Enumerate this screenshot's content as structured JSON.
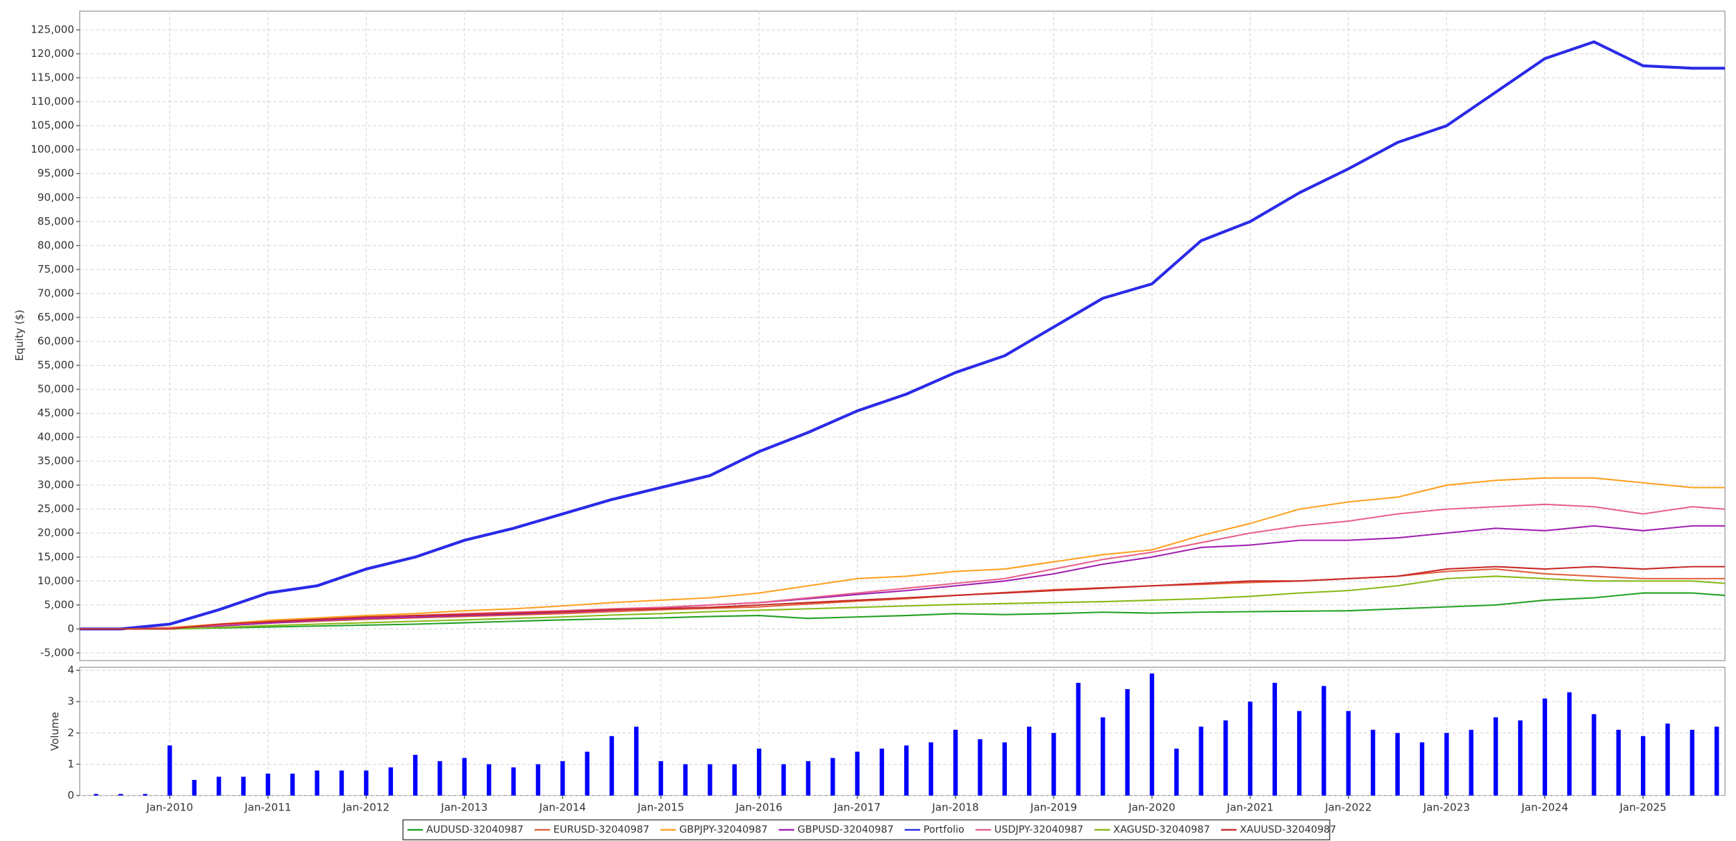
{
  "chart_data": [
    {
      "type": "line",
      "y_label": "Equity ($)",
      "x": [
        "2009-02",
        "2009-07",
        "2010-01",
        "2010-07",
        "2011-01",
        "2011-07",
        "2012-01",
        "2012-07",
        "2013-01",
        "2013-07",
        "2014-01",
        "2014-07",
        "2015-01",
        "2015-07",
        "2016-01",
        "2016-07",
        "2017-01",
        "2017-07",
        "2018-01",
        "2018-07",
        "2019-01",
        "2019-07",
        "2020-01",
        "2020-07",
        "2021-01",
        "2021-07",
        "2022-01",
        "2022-07",
        "2023-01",
        "2023-07",
        "2024-01",
        "2024-07",
        "2025-01",
        "2025-07",
        "2025-11"
      ],
      "xlim": [
        "2009-02",
        "2025-11"
      ],
      "ylim": [
        -6600,
        128900
      ],
      "yticks": [
        {
          "value": -5000,
          "label": "-5,000"
        },
        0,
        {
          "value": 5000,
          "label": "5,000"
        },
        {
          "value": 10000,
          "label": "10,000"
        },
        {
          "value": 15000,
          "label": "15,000"
        },
        {
          "value": 20000,
          "label": "20,000"
        },
        {
          "value": 25000,
          "label": "25,000"
        },
        {
          "value": 30000,
          "label": "30,000"
        },
        {
          "value": 35000,
          "label": "35,000"
        },
        {
          "value": 40000,
          "label": "40,000"
        },
        {
          "value": 45000,
          "label": "45,000"
        },
        {
          "value": 50000,
          "label": "50,000"
        },
        {
          "value": 55000,
          "label": "55,000"
        },
        {
          "value": 60000,
          "label": "60,000"
        },
        {
          "value": 65000,
          "label": "65,000"
        },
        {
          "value": 70000,
          "label": "70,000"
        },
        {
          "value": 75000,
          "label": "75,000"
        },
        {
          "value": 80000,
          "label": "80,000"
        },
        {
          "value": 85000,
          "label": "85,000"
        },
        {
          "value": 90000,
          "label": "90,000"
        },
        {
          "value": 95000,
          "label": "95,000"
        },
        {
          "value": 100000,
          "label": "100,000"
        },
        {
          "value": 105000,
          "label": "105,000"
        },
        {
          "value": 110000,
          "label": "110,000"
        },
        {
          "value": 115000,
          "label": "115,000"
        },
        {
          "value": 120000,
          "label": "120,000"
        },
        {
          "value": 125000,
          "label": "125,000"
        }
      ],
      "grid": true,
      "legend": "bottom",
      "series": [
        {
          "name": "AUDUSD-32040987",
          "color": "#22a022",
          "values": [
            0,
            0,
            0,
            200,
            400,
            600,
            800,
            1000,
            1300,
            1600,
            1900,
            2100,
            2300,
            2600,
            2800,
            2200,
            2500,
            2800,
            3200,
            3000,
            3200,
            3500,
            3300,
            3500,
            3600,
            3700,
            3800,
            4200,
            4600,
            5000,
            6000,
            6500,
            7500,
            7500,
            7000
          ]
        },
        {
          "name": "EURUSD-32040987",
          "color": "#e0603a",
          "values": [
            0,
            0,
            100,
            700,
            1200,
            1600,
            2000,
            2300,
            2600,
            2900,
            3200,
            3600,
            4000,
            4300,
            4600,
            5200,
            5800,
            6300,
            7000,
            7600,
            8200,
            8600,
            9000,
            9300,
            9700,
            10000,
            10500,
            11000,
            12000,
            12500,
            11500,
            11000,
            10500,
            10500,
            10500
          ]
        },
        {
          "name": "GBPJPY-32040987",
          "color": "#ffa020",
          "values": [
            0,
            0,
            300,
            1000,
            1800,
            2300,
            2800,
            3200,
            3800,
            4200,
            4800,
            5500,
            6000,
            6500,
            7500,
            9000,
            10500,
            11000,
            12000,
            12500,
            14000,
            15500,
            16500,
            19500,
            22000,
            25000,
            26500,
            27500,
            30000,
            31000,
            31500,
            31500,
            30500,
            29500,
            29500
          ]
        },
        {
          "name": "GBPUSD-32040987",
          "color": "#a020b0",
          "values": [
            0,
            0,
            100,
            600,
            1200,
            1800,
            2200,
            2500,
            2800,
            3100,
            3500,
            3900,
            4400,
            5000,
            5500,
            6300,
            7200,
            8000,
            9000,
            10000,
            11500,
            13500,
            15000,
            17000,
            17500,
            18500,
            18500,
            19000,
            20000,
            21000,
            20500,
            21500,
            20500,
            21500,
            21500
          ]
        },
        {
          "name": "Portfolio",
          "color": "#2a2ae8",
          "values": [
            0,
            0,
            1000,
            4000,
            7500,
            9000,
            12500,
            15000,
            18500,
            21000,
            24000,
            27000,
            29500,
            32000,
            37000,
            41000,
            45500,
            49000,
            53500,
            57000,
            63000,
            69000,
            72000,
            81000,
            85000,
            91000,
            96000,
            101500,
            105000,
            112000,
            119000,
            122500,
            117500,
            117000,
            117000
          ]
        },
        {
          "name": "USDJPY-32040987",
          "color": "#e8608a",
          "values": [
            0,
            0,
            200,
            800,
            1500,
            2000,
            2500,
            2800,
            3200,
            3500,
            3800,
            4200,
            4500,
            5000,
            5500,
            6500,
            7500,
            8500,
            9500,
            10500,
            12500,
            14500,
            16000,
            18000,
            20000,
            21500,
            22500,
            24000,
            25000,
            25500,
            26000,
            25500,
            24000,
            25500,
            25000
          ]
        },
        {
          "name": "XAGUSD-32040987",
          "color": "#88b818",
          "values": [
            0,
            0,
            0,
            300,
            700,
            1000,
            1300,
            1600,
            1900,
            2200,
            2500,
            2900,
            3200,
            3600,
            3900,
            4200,
            4500,
            4800,
            5100,
            5300,
            5500,
            5700,
            6000,
            6300,
            6800,
            7500,
            8000,
            9000,
            10500,
            11000,
            10500,
            10000,
            10000,
            10000,
            9500
          ]
        },
        {
          "name": "XAUUSD-32040987",
          "color": "#c82828",
          "values": [
            0,
            0,
            0,
            1000,
            1500,
            2000,
            2500,
            2800,
            3000,
            3300,
            3600,
            4000,
            4200,
            4500,
            5000,
            5500,
            6000,
            6500,
            7000,
            7500,
            8000,
            8500,
            9000,
            9500,
            10000,
            10000,
            10500,
            11000,
            12500,
            13000,
            12500,
            13000,
            12500,
            13000,
            13000
          ]
        }
      ]
    },
    {
      "type": "bar",
      "y_label": "Volume",
      "color": "#0000ff",
      "x": [
        "2009-04",
        "2009-07",
        "2009-10",
        "2010-01",
        "2010-04",
        "2010-07",
        "2010-10",
        "2011-01",
        "2011-04",
        "2011-07",
        "2011-10",
        "2012-01",
        "2012-04",
        "2012-07",
        "2012-10",
        "2013-01",
        "2013-04",
        "2013-07",
        "2013-10",
        "2014-01",
        "2014-04",
        "2014-07",
        "2014-10",
        "2015-01",
        "2015-04",
        "2015-07",
        "2015-10",
        "2016-01",
        "2016-04",
        "2016-07",
        "2016-10",
        "2017-01",
        "2017-04",
        "2017-07",
        "2017-10",
        "2018-01",
        "2018-04",
        "2018-07",
        "2018-10",
        "2019-01",
        "2019-04",
        "2019-07",
        "2019-10",
        "2020-01",
        "2020-04",
        "2020-07",
        "2020-10",
        "2021-01",
        "2021-04",
        "2021-07",
        "2021-10",
        "2022-01",
        "2022-04",
        "2022-07",
        "2022-10",
        "2023-01",
        "2023-04",
        "2023-07",
        "2023-10",
        "2024-01",
        "2024-04",
        "2024-07",
        "2024-10",
        "2025-01",
        "2025-04",
        "2025-07",
        "2025-10"
      ],
      "values": [
        0.05,
        0.05,
        0.05,
        1.6,
        0.5,
        0.6,
        0.6,
        0.7,
        0.7,
        0.8,
        0.8,
        0.8,
        0.9,
        1.3,
        1.1,
        1.2,
        1.0,
        0.9,
        1.0,
        1.1,
        1.4,
        1.9,
        2.2,
        1.1,
        1.0,
        1.0,
        1.0,
        1.5,
        1.0,
        1.1,
        1.2,
        1.4,
        1.5,
        1.6,
        1.7,
        2.1,
        1.8,
        1.7,
        2.2,
        2.0,
        3.6,
        2.5,
        3.4,
        3.9,
        1.5,
        2.2,
        2.4,
        3.0,
        3.6,
        2.7,
        3.5,
        2.7,
        2.1,
        2.0,
        1.7,
        2.0,
        2.1,
        2.5,
        2.4,
        3.1,
        3.3,
        2.6,
        2.1,
        1.9,
        2.3,
        2.1,
        2.2
      ],
      "xlim": [
        "2009-02",
        "2025-11"
      ],
      "xticks": [
        {
          "value": "2010-01",
          "label": "Jan-2010"
        },
        {
          "value": "2011-01",
          "label": "Jan-2011"
        },
        {
          "value": "2012-01",
          "label": "Jan-2012"
        },
        {
          "value": "2013-01",
          "label": "Jan-2013"
        },
        {
          "value": "2014-01",
          "label": "Jan-2014"
        },
        {
          "value": "2015-01",
          "label": "Jan-2015"
        },
        {
          "value": "2016-01",
          "label": "Jan-2016"
        },
        {
          "value": "2017-01",
          "label": "Jan-2017"
        },
        {
          "value": "2018-01",
          "label": "Jan-2018"
        },
        {
          "value": "2019-01",
          "label": "Jan-2019"
        },
        {
          "value": "2020-01",
          "label": "Jan-2020"
        },
        {
          "value": "2021-01",
          "label": "Jan-2021"
        },
        {
          "value": "2022-01",
          "label": "Jan-2022"
        },
        {
          "value": "2023-01",
          "label": "Jan-2023"
        },
        {
          "value": "2024-01",
          "label": "Jan-2024"
        },
        {
          "value": "2025-01",
          "label": "Jan-2025"
        }
      ],
      "ylim": [
        0,
        4.1
      ],
      "yticks": [
        0,
        1,
        2,
        3,
        4
      ],
      "grid": true
    }
  ]
}
